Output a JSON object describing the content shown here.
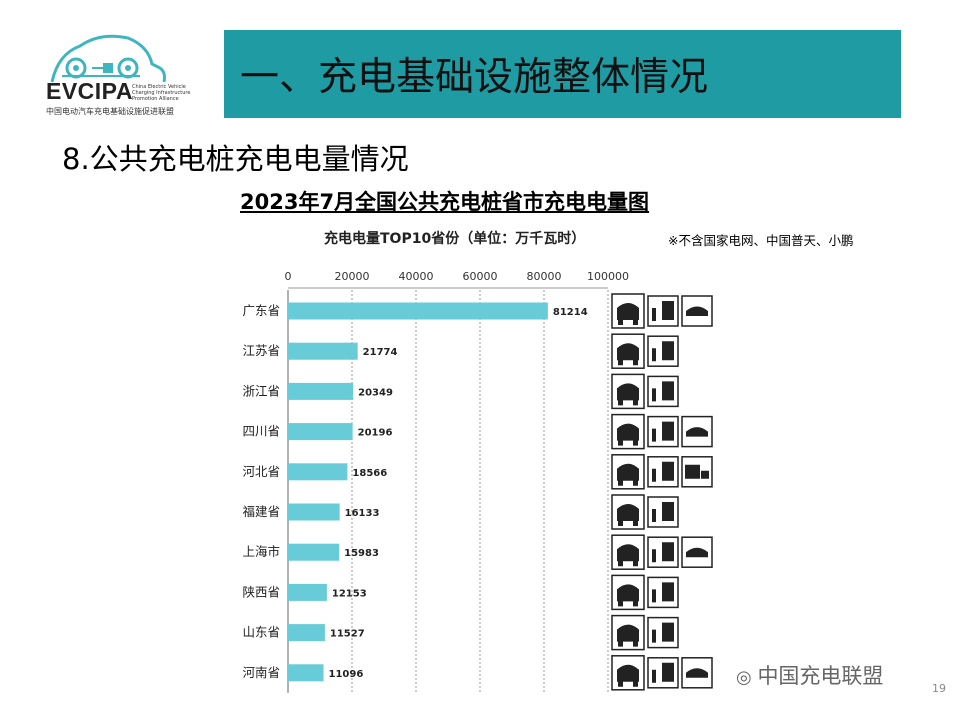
{
  "logo": {
    "name": "EVCIPA",
    "english": "China Electric Vehicle Charging Infrastructure Promotion Alliance",
    "chinese": "中国电动汽车充电基础设施促进联盟"
  },
  "header": {
    "title": "一、充电基础设施整体情况"
  },
  "section": {
    "title": "8.公共充电桩充电电量情况"
  },
  "chart_data": {
    "type": "bar",
    "orientation": "horizontal",
    "title": "2023年7月全国公共充电桩省市充电电量图",
    "subtitle": "充电电量TOP10省份（单位：万千瓦时）",
    "note": "※不含国家电网、中国普天、小鹏",
    "categories": [
      "广东省",
      "江苏省",
      "浙江省",
      "四川省",
      "河北省",
      "福建省",
      "上海市",
      "陕西省",
      "山东省",
      "河南省"
    ],
    "values": [
      81214,
      21774,
      20349,
      20196,
      18566,
      16133,
      15983,
      12153,
      11527,
      11096
    ],
    "value_labels": [
      "81214",
      "21774",
      "20349",
      "20196",
      "18566",
      "16133",
      "15983",
      "12153",
      "11527",
      "11096"
    ],
    "xlim": [
      0,
      100000
    ],
    "x_ticks": [
      "0",
      "20000",
      "40000",
      "60000",
      "80000",
      "100000"
    ],
    "grid": true,
    "bar_color": "#67cbd8",
    "row_icons": [
      [
        "car-icon",
        "bus-icon",
        "taxi-icon"
      ],
      [
        "car-icon",
        "bus-icon"
      ],
      [
        "car-icon",
        "bus-icon"
      ],
      [
        "car-icon",
        "bus-icon",
        "taxi-icon"
      ],
      [
        "car-icon",
        "bus-icon",
        "truck-icon"
      ],
      [
        "car-icon",
        "bus-icon"
      ],
      [
        "car-icon",
        "bus-icon",
        "taxi-icon"
      ],
      [
        "car-icon",
        "bus-icon"
      ],
      [
        "car-icon",
        "bus-icon"
      ],
      [
        "car-icon",
        "bus-icon",
        "taxi-icon"
      ]
    ]
  },
  "footer": {
    "brand": "中国充电联盟",
    "page": "19"
  },
  "colors": {
    "banner": "#1f9ba4",
    "bar": "#67cbd8"
  }
}
